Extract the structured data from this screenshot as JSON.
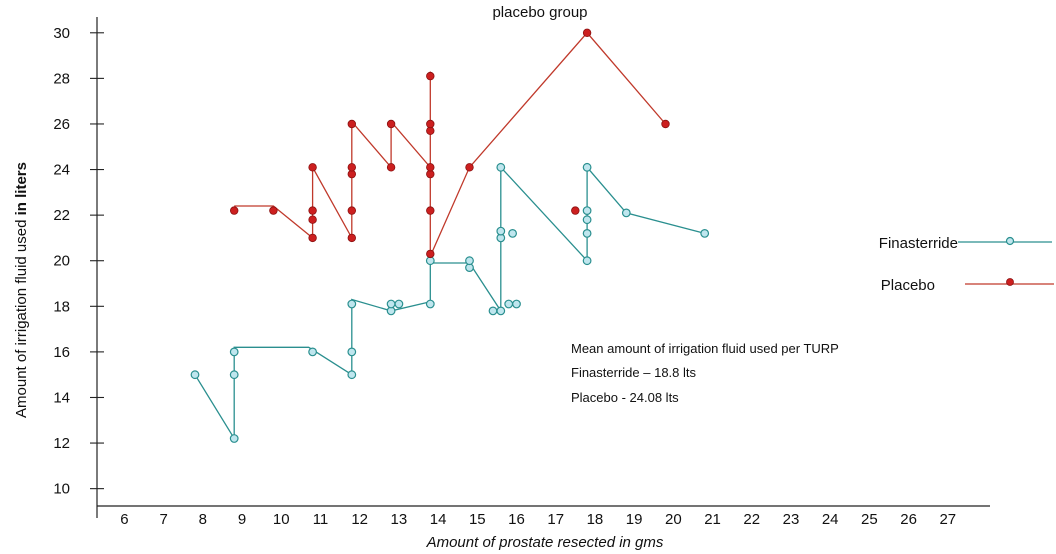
{
  "chart_data": {
    "type": "scatter",
    "title": "placebo group",
    "xlabel": "Amount of prostate resected in gms",
    "ylabel_main": "Amount of irrigation fluid used ",
    "ylabel_bold": "in liters",
    "xlim": [
      5.3,
      28
    ],
    "ylim": [
      8.8,
      31
    ],
    "x_ticks": [
      6,
      7,
      8,
      9,
      10,
      11,
      12,
      13,
      14,
      15,
      16,
      17,
      18,
      19,
      20,
      21,
      22,
      23,
      24,
      25,
      26,
      27
    ],
    "y_ticks": [
      10,
      12,
      14,
      16,
      18,
      20,
      22,
      24,
      26,
      28,
      30
    ],
    "legend_position": "right",
    "series": [
      {
        "name": "Finasterride",
        "color": "#2a8f8f",
        "fill": "#bfe6ee",
        "marker": "open-circle",
        "line": [
          [
            7.8,
            15.0
          ],
          [
            8.8,
            12.2
          ],
          [
            8.8,
            16.2
          ],
          [
            10.7,
            16.2
          ],
          [
            11.8,
            15.0
          ],
          [
            11.8,
            18.3
          ],
          [
            12.8,
            17.8
          ],
          [
            13.8,
            18.2
          ],
          [
            13.8,
            19.9
          ],
          [
            14.8,
            19.9
          ],
          [
            15.6,
            17.8
          ],
          [
            15.6,
            24.1
          ],
          [
            17.8,
            20.0
          ],
          [
            17.8,
            24.1
          ],
          [
            18.8,
            22.1
          ],
          [
            20.8,
            21.2
          ]
        ],
        "points": [
          [
            7.8,
            15.0
          ],
          [
            8.8,
            12.2
          ],
          [
            8.8,
            15.0
          ],
          [
            8.8,
            16.0
          ],
          [
            10.8,
            16.0
          ],
          [
            11.8,
            15.0
          ],
          [
            11.8,
            16.0
          ],
          [
            11.8,
            18.1
          ],
          [
            12.8,
            17.8
          ],
          [
            12.8,
            18.1
          ],
          [
            13.0,
            18.1
          ],
          [
            13.8,
            18.1
          ],
          [
            13.8,
            20.0
          ],
          [
            14.8,
            19.7
          ],
          [
            14.8,
            20.0
          ],
          [
            15.4,
            17.8
          ],
          [
            15.6,
            17.8
          ],
          [
            15.8,
            18.1
          ],
          [
            16.0,
            18.1
          ],
          [
            15.6,
            21.0
          ],
          [
            15.6,
            21.3
          ],
          [
            15.9,
            21.2
          ],
          [
            15.6,
            24.1
          ],
          [
            17.8,
            20.0
          ],
          [
            17.8,
            21.2
          ],
          [
            17.8,
            21.8
          ],
          [
            17.8,
            22.2
          ],
          [
            17.8,
            24.1
          ],
          [
            18.8,
            22.1
          ],
          [
            20.8,
            21.2
          ]
        ]
      },
      {
        "name": "Placebo",
        "color": "#c0392b",
        "fill": "#cc1f1f",
        "marker": "filled-circle",
        "line": [
          [
            8.8,
            22.4
          ],
          [
            9.8,
            22.4
          ],
          [
            10.8,
            21.0
          ],
          [
            10.8,
            24.1
          ],
          [
            11.8,
            21.0
          ],
          [
            11.8,
            26.1
          ],
          [
            12.8,
            24.1
          ],
          [
            12.8,
            26.1
          ],
          [
            13.8,
            24.1
          ],
          [
            13.8,
            28.3
          ],
          [
            13.8,
            20.2
          ],
          [
            14.8,
            24.1
          ],
          [
            17.8,
            30.0
          ],
          [
            19.8,
            26.0
          ]
        ],
        "points": [
          [
            8.8,
            22.2
          ],
          [
            9.8,
            22.2
          ],
          [
            10.8,
            21.0
          ],
          [
            10.8,
            21.8
          ],
          [
            10.8,
            22.2
          ],
          [
            10.8,
            24.1
          ],
          [
            11.8,
            21.0
          ],
          [
            11.8,
            22.2
          ],
          [
            11.8,
            23.8
          ],
          [
            11.8,
            24.1
          ],
          [
            11.8,
            26.0
          ],
          [
            12.8,
            24.1
          ],
          [
            12.8,
            26.0
          ],
          [
            13.8,
            20.3
          ],
          [
            13.8,
            22.2
          ],
          [
            13.8,
            23.8
          ],
          [
            13.8,
            24.1
          ],
          [
            13.8,
            25.7
          ],
          [
            13.8,
            26.0
          ],
          [
            13.8,
            28.1
          ],
          [
            14.8,
            24.1
          ],
          [
            17.5,
            22.2
          ],
          [
            17.8,
            30.0
          ],
          [
            19.8,
            26.0
          ]
        ]
      }
    ],
    "annotations": [
      "Mean amount of irrigation fluid used per TURP",
      "Finasterride – 18.8 lts",
      "Placebo  - 24.08 lts"
    ]
  }
}
